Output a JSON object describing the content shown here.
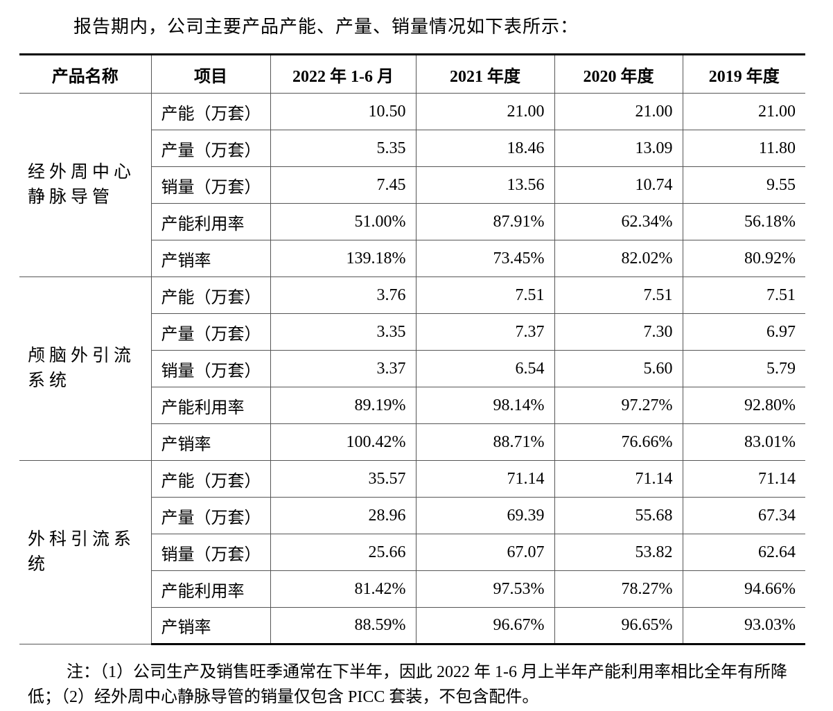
{
  "intro": "报告期内，公司主要产品产能、产量、销量情况如下表所示：",
  "table": {
    "headers": [
      "产品名称",
      "项目",
      "2022 年 1-6 月",
      "2021 年度",
      "2020 年度",
      "2019 年度"
    ],
    "groups": [
      {
        "product": "经外周中心静脉导管",
        "rows": [
          {
            "item": "产能（万套）",
            "values": [
              "10.50",
              "21.00",
              "21.00",
              "21.00"
            ]
          },
          {
            "item": "产量（万套）",
            "values": [
              "5.35",
              "18.46",
              "13.09",
              "11.80"
            ]
          },
          {
            "item": "销量（万套）",
            "values": [
              "7.45",
              "13.56",
              "10.74",
              "9.55"
            ]
          },
          {
            "item": "产能利用率",
            "values": [
              "51.00%",
              "87.91%",
              "62.34%",
              "56.18%"
            ]
          },
          {
            "item": "产销率",
            "values": [
              "139.18%",
              "73.45%",
              "82.02%",
              "80.92%"
            ]
          }
        ]
      },
      {
        "product": "颅脑外引流系统",
        "rows": [
          {
            "item": "产能（万套）",
            "values": [
              "3.76",
              "7.51",
              "7.51",
              "7.51"
            ]
          },
          {
            "item": "产量（万套）",
            "values": [
              "3.35",
              "7.37",
              "7.30",
              "6.97"
            ]
          },
          {
            "item": "销量（万套）",
            "values": [
              "3.37",
              "6.54",
              "5.60",
              "5.79"
            ]
          },
          {
            "item": "产能利用率",
            "values": [
              "89.19%",
              "98.14%",
              "97.27%",
              "92.80%"
            ]
          },
          {
            "item": "产销率",
            "values": [
              "100.42%",
              "88.71%",
              "76.66%",
              "83.01%"
            ]
          }
        ]
      },
      {
        "product": "外科引流系统",
        "rows": [
          {
            "item": "产能（万套）",
            "values": [
              "35.57",
              "71.14",
              "71.14",
              "71.14"
            ]
          },
          {
            "item": "产量（万套）",
            "values": [
              "28.96",
              "69.39",
              "55.68",
              "67.34"
            ]
          },
          {
            "item": "销量（万套）",
            "values": [
              "25.66",
              "67.07",
              "53.82",
              "62.64"
            ]
          },
          {
            "item": "产能利用率",
            "values": [
              "81.42%",
              "97.53%",
              "78.27%",
              "94.66%"
            ]
          },
          {
            "item": "产销率",
            "values": [
              "88.59%",
              "96.67%",
              "96.65%",
              "93.03%"
            ]
          }
        ]
      }
    ]
  },
  "note": "注：（1）公司生产及销售旺季通常在下半年，因此 2022 年 1-6 月上半年产能利用率相比全年有所降低；（2）经外周中心静脉导管的销量仅包含 PICC 套装，不包含配件。"
}
